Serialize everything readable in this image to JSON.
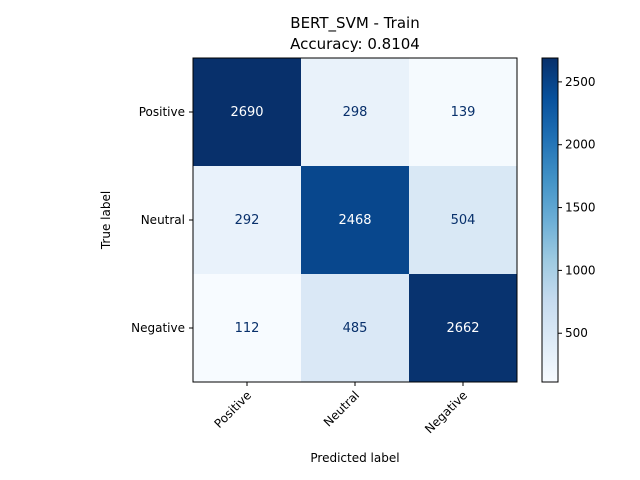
{
  "chart_data": {
    "type": "heatmap",
    "title": "BERT_SVM - Train",
    "subtitle": "Accuracy: 0.8104",
    "xlabel": "Predicted label",
    "ylabel": "True label",
    "x_categories": [
      "Positive",
      "Neutral",
      "Negative"
    ],
    "y_categories": [
      "Positive",
      "Neutral",
      "Negative"
    ],
    "values": [
      [
        2690,
        298,
        139
      ],
      [
        292,
        2468,
        504
      ],
      [
        112,
        485,
        2662
      ]
    ],
    "colorbar": {
      "min": 112,
      "max": 2690,
      "ticks": [
        500,
        1000,
        1500,
        2000,
        2500
      ]
    },
    "colormap": {
      "name": "Blues",
      "stops": [
        "#f7fbff",
        "#deebf7",
        "#c6dbef",
        "#9ecae1",
        "#6baed6",
        "#4292c6",
        "#2171b5",
        "#08519c",
        "#08306b"
      ]
    },
    "text_colors": {
      "dark": "#08306b",
      "light": "#ffffff"
    }
  }
}
